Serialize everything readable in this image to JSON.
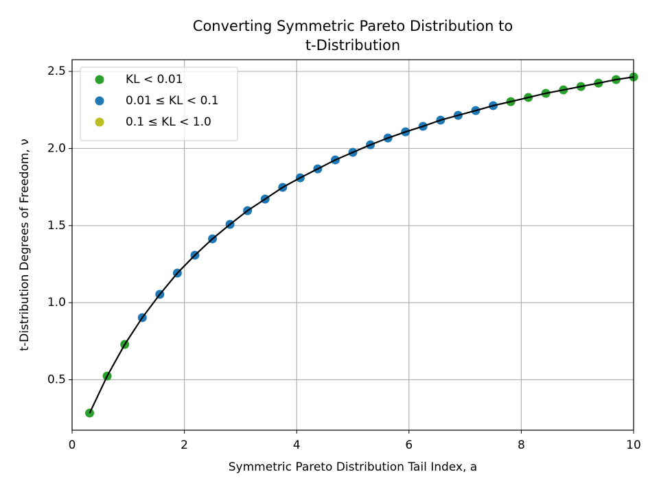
{
  "chart_data": {
    "type": "scatter",
    "title": [
      "Converting Symmetric Pareto Distribution to",
      "t-Distribution"
    ],
    "x_label": "Symmetric Pareto Distribution Tail Index, a",
    "y_label": "t-Distribution Degrees of Freedom, ν",
    "xlim": [
      0,
      10
    ],
    "ylim": [
      0.173,
      2.576
    ],
    "xticks": [
      0,
      2,
      4,
      6,
      8,
      10
    ],
    "yticks": [
      0.5,
      {
        "value": 1,
        "label": "1.0"
      },
      1.5,
      {
        "value": 2,
        "label": "2.0"
      },
      2.5
    ],
    "grid": true,
    "legend": "upper left",
    "series": [
      {
        "name": "KL < 0.01",
        "color": "#2ca02c",
        "x": [
          0.3125,
          0.625,
          0.9375,
          7.8125,
          8.125,
          8.4375,
          8.75,
          9.0625,
          9.375,
          9.6875,
          10
        ],
        "values": [
          0.284,
          0.524,
          0.729,
          2.304,
          2.331,
          2.358,
          2.38,
          2.402,
          2.424,
          2.447,
          2.464
        ]
      },
      {
        "name": "0.01 ≤ KL < 0.1",
        "color": "#1f77b4",
        "x": [
          1.25,
          1.5625,
          1.875,
          2.1875,
          2.5,
          2.8125,
          3.125,
          3.4375,
          3.75,
          4.0625,
          4.375,
          4.6875,
          5.0,
          5.3125,
          5.625,
          5.9375,
          6.25,
          6.5625,
          6.875,
          7.1875,
          7.5
        ],
        "values": [
          0.903,
          1.054,
          1.192,
          1.308,
          1.414,
          1.508,
          1.597,
          1.672,
          1.748,
          1.81,
          1.868,
          1.926,
          1.975,
          2.024,
          2.068,
          2.108,
          2.144,
          2.184,
          2.215,
          2.246,
          2.278
        ]
      },
      {
        "name": "0.1 ≤ KL < 1.0",
        "color": "#bcbd22",
        "x": [],
        "values": []
      },
      {
        "type": "line",
        "color": "#000000",
        "x": [
          0.3125,
          0.625,
          0.9375,
          1.25,
          1.5625,
          1.875,
          2.1875,
          2.5,
          2.8125,
          3.125,
          3.4375,
          3.75,
          4.0625,
          4.375,
          4.6875,
          5.0,
          5.3125,
          5.625,
          5.9375,
          6.25,
          6.5625,
          6.875,
          7.1875,
          7.5,
          7.8125,
          8.125,
          8.4375,
          8.75,
          9.0625,
          9.375,
          9.6875,
          10
        ],
        "values": [
          0.284,
          0.524,
          0.729,
          0.903,
          1.054,
          1.192,
          1.308,
          1.414,
          1.508,
          1.597,
          1.672,
          1.748,
          1.81,
          1.868,
          1.926,
          1.975,
          2.024,
          2.068,
          2.108,
          2.144,
          2.184,
          2.215,
          2.246,
          2.278,
          2.304,
          2.331,
          2.358,
          2.38,
          2.402,
          2.424,
          2.447,
          2.464
        ]
      }
    ]
  }
}
